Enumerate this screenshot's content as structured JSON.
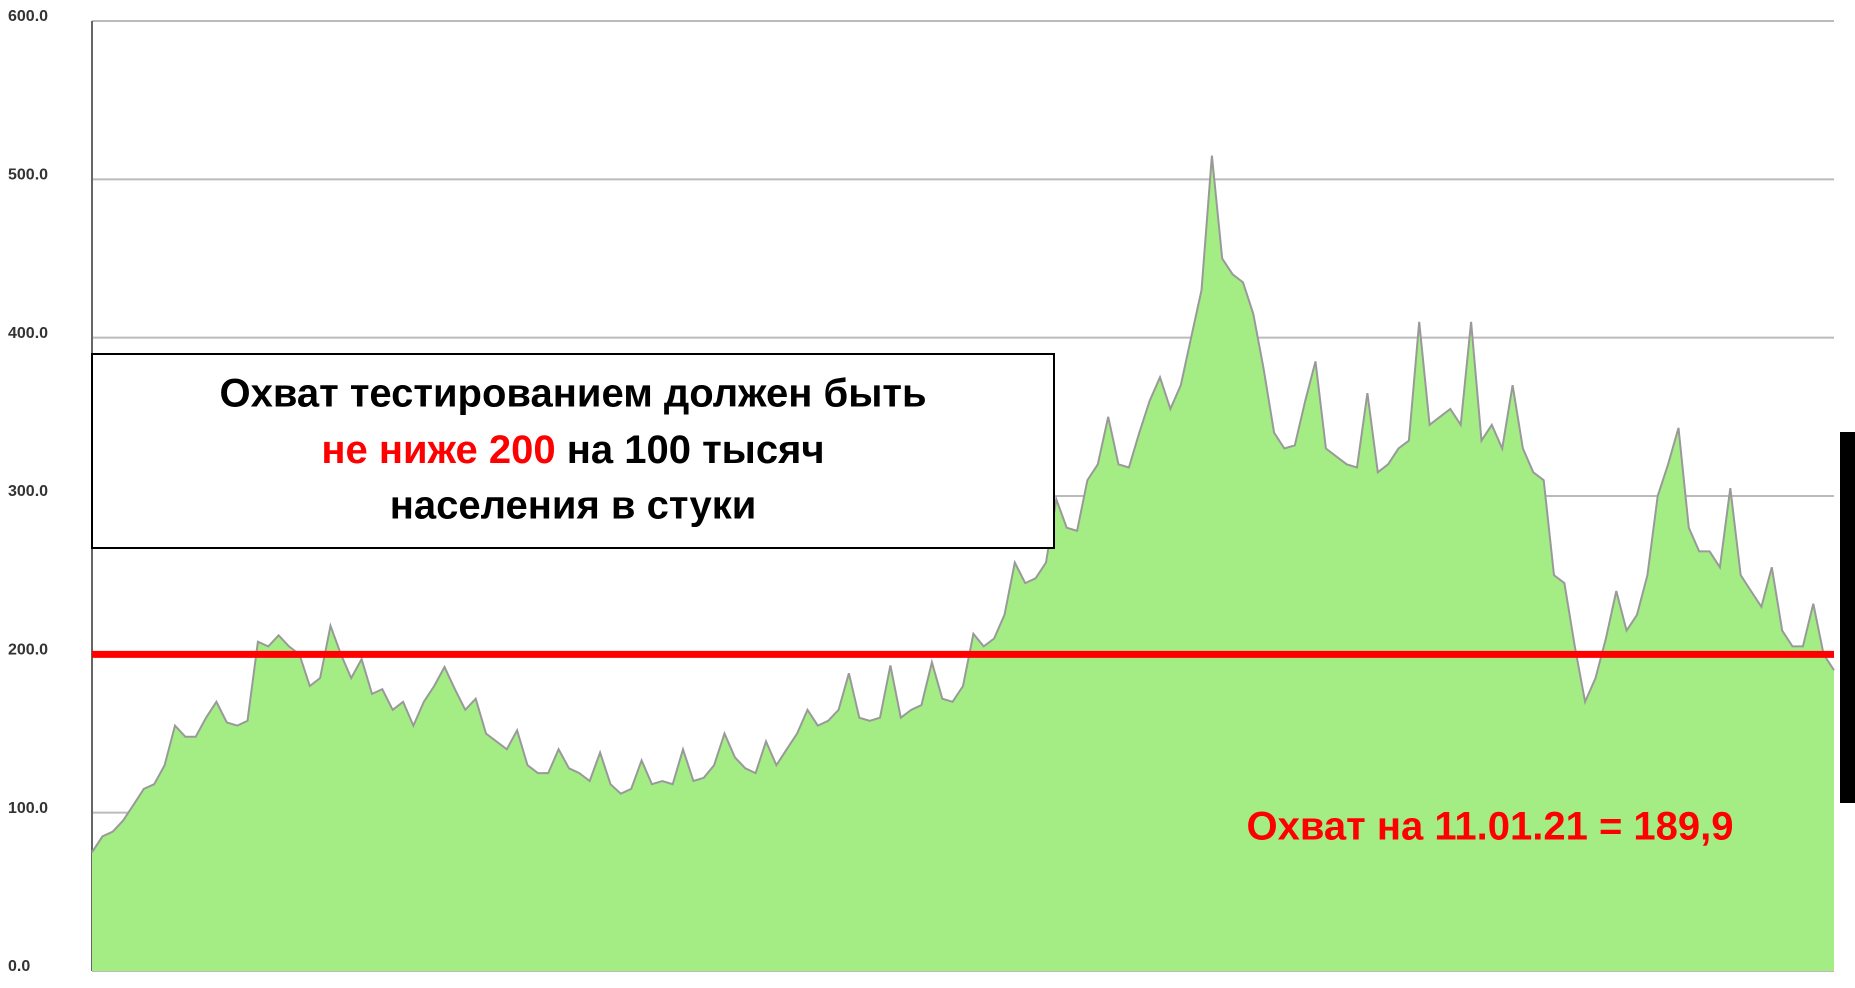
{
  "chart_data": {
    "type": "area",
    "values": [
      75,
      85,
      88,
      95,
      105,
      115,
      118,
      130,
      155,
      148,
      148,
      160,
      170,
      157,
      155,
      158,
      208,
      205,
      212,
      205,
      200,
      180,
      185,
      218,
      200,
      185,
      197,
      175,
      178,
      165,
      170,
      155,
      170,
      180,
      192,
      178,
      165,
      172,
      150,
      145,
      140,
      152,
      130,
      125,
      125,
      140,
      128,
      125,
      120,
      138,
      118,
      112,
      115,
      133,
      118,
      120,
      118,
      140,
      120,
      122,
      130,
      150,
      135,
      128,
      125,
      145,
      130,
      140,
      150,
      165,
      155,
      158,
      165,
      188,
      160,
      158,
      160,
      193,
      160,
      165,
      168,
      195,
      172,
      170,
      180,
      213,
      205,
      210,
      225,
      258,
      245,
      248,
      258,
      298,
      280,
      278,
      310,
      320,
      350,
      320,
      318,
      340,
      360,
      375,
      355,
      370,
      400,
      430,
      515,
      450,
      440,
      435,
      415,
      380,
      340,
      330,
      332,
      360,
      385,
      330,
      325,
      320,
      318,
      365,
      315,
      320,
      330,
      335,
      410,
      345,
      350,
      355,
      345,
      410,
      335,
      345,
      330,
      370,
      330,
      315,
      310,
      250,
      245,
      205,
      170,
      185,
      210,
      240,
      215,
      225,
      250,
      300,
      320,
      343,
      280,
      265,
      265,
      255,
      305,
      250,
      240,
      230,
      255,
      215,
      205,
      205,
      232,
      200,
      190
    ],
    "color": "#a4ed85",
    "line_color": "#999999",
    "ylim": [
      0,
      600
    ],
    "yticks": [
      {
        "value": 0,
        "label": "0.0"
      },
      {
        "value": 100,
        "label": "100.0"
      },
      {
        "value": 200,
        "label": "200.0"
      },
      {
        "value": 300,
        "label": "300.0"
      },
      {
        "value": 400,
        "label": "400.0"
      },
      {
        "value": 500,
        "label": "500.0"
      },
      {
        "value": 600,
        "label": "600.0"
      }
    ],
    "grid": true,
    "reference_line": {
      "value": 200,
      "color": "#ff0000"
    },
    "annotations": {
      "box_line1": "Охват тестированием должен быть",
      "box_line2_red": "не ниже 200",
      "box_line2_rest": " на 100 тысяч",
      "box_line3": "населения в стуки",
      "note": "Охват на 11.01.21 = 189,9"
    }
  }
}
